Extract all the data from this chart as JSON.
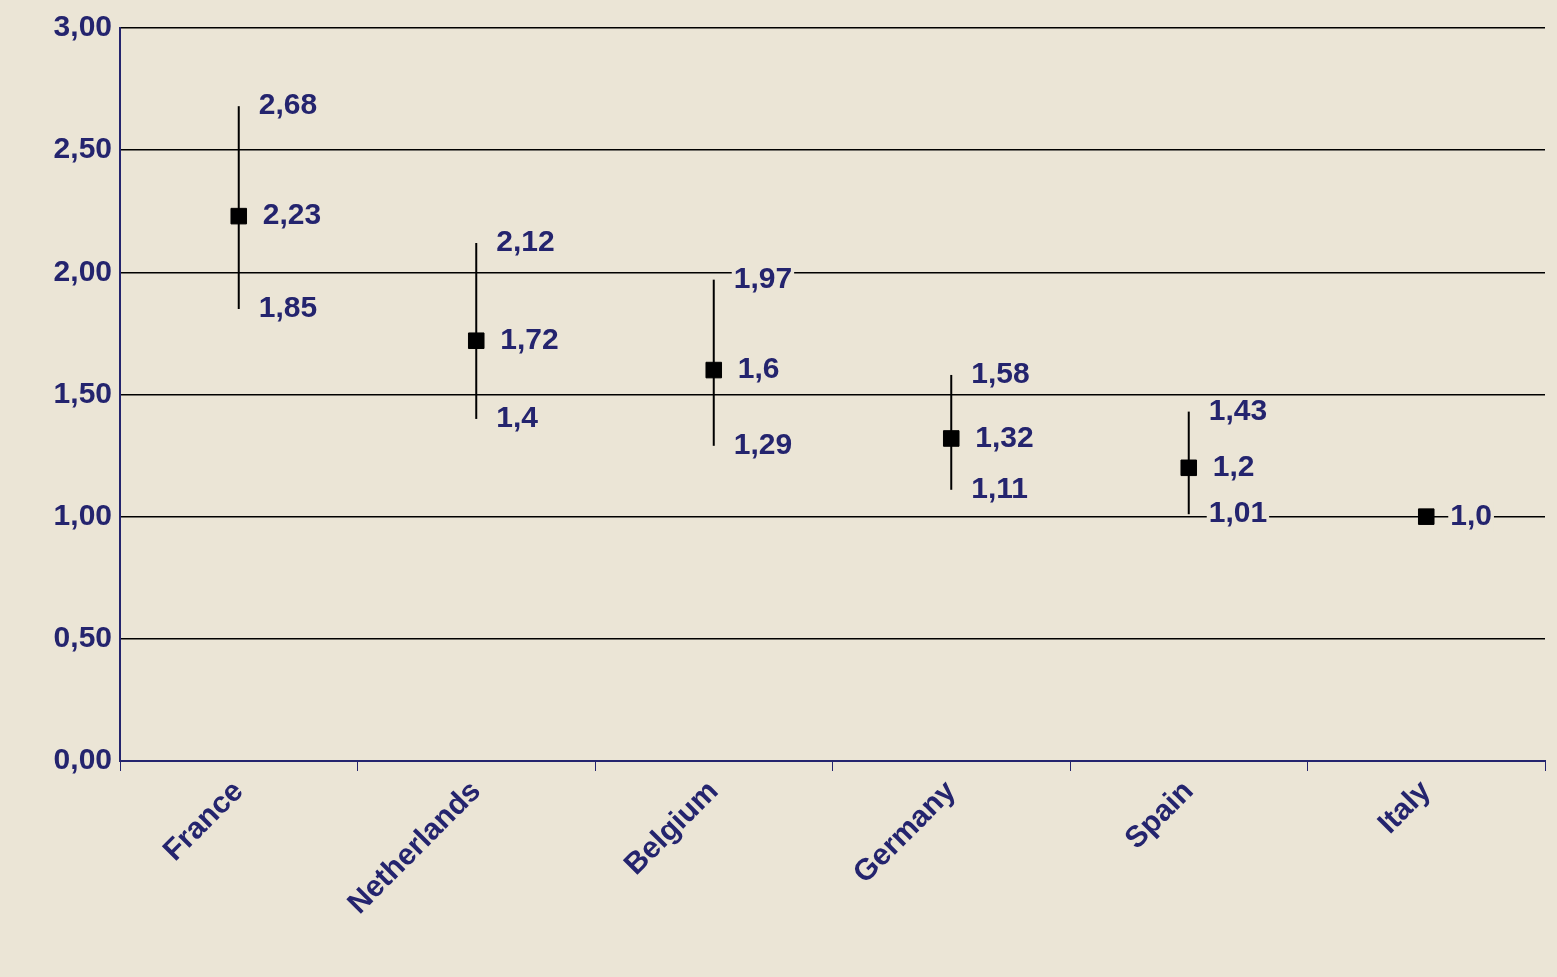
{
  "chart_data": {
    "type": "scatter",
    "categories": [
      "France",
      "Netherlands",
      "Belgium",
      "Germany",
      "Spain",
      "Italy"
    ],
    "series": [
      {
        "color": "#000000",
        "values": [
          2.23,
          1.72,
          1.6,
          1.32,
          1.2,
          1.0
        ],
        "errors": [
          [
            1.85,
            2.68
          ],
          [
            1.4,
            2.12
          ],
          [
            1.29,
            1.97
          ],
          [
            1.11,
            1.58
          ],
          [
            1.01,
            1.43
          ],
          null
        ],
        "value_labels": [
          "2,23",
          "1,72",
          "1,6",
          "1,32",
          "1,2",
          "1,0"
        ]
      }
    ],
    "ylim": [
      0,
      3
    ],
    "yticks": [
      {
        "value": 0,
        "label": "0,00"
      },
      {
        "value": 0.5,
        "label": "0,50"
      },
      {
        "value": 1,
        "label": "1,00"
      },
      {
        "value": 1.5,
        "label": "1,50"
      },
      {
        "value": 2,
        "label": "2,00"
      },
      {
        "value": 2.5,
        "label": "2,50"
      },
      {
        "value": 3,
        "label": "3,00"
      }
    ],
    "annotations": [
      {
        "text": "2,68",
        "x": "France",
        "y": 2.68
      },
      {
        "text": "1,85",
        "x": "France",
        "y": 1.85
      },
      {
        "text": "2,12",
        "x": "Netherlands",
        "y": 2.12
      },
      {
        "text": "1,4",
        "x": "Netherlands",
        "y": 1.4
      },
      {
        "text": "1,97",
        "x": "Belgium",
        "y": 1.97
      },
      {
        "text": "1,29",
        "x": "Belgium",
        "y": 1.29
      },
      {
        "text": "1,58",
        "x": "Germany",
        "y": 1.58
      },
      {
        "text": "1,11",
        "x": "Germany",
        "y": 1.11
      },
      {
        "text": "1,43",
        "x": "Spain",
        "y": 1.43
      },
      {
        "text": "1,01",
        "x": "Spain",
        "y": 1.01
      }
    ],
    "grid": "y",
    "legend": false,
    "marker": "square"
  }
}
